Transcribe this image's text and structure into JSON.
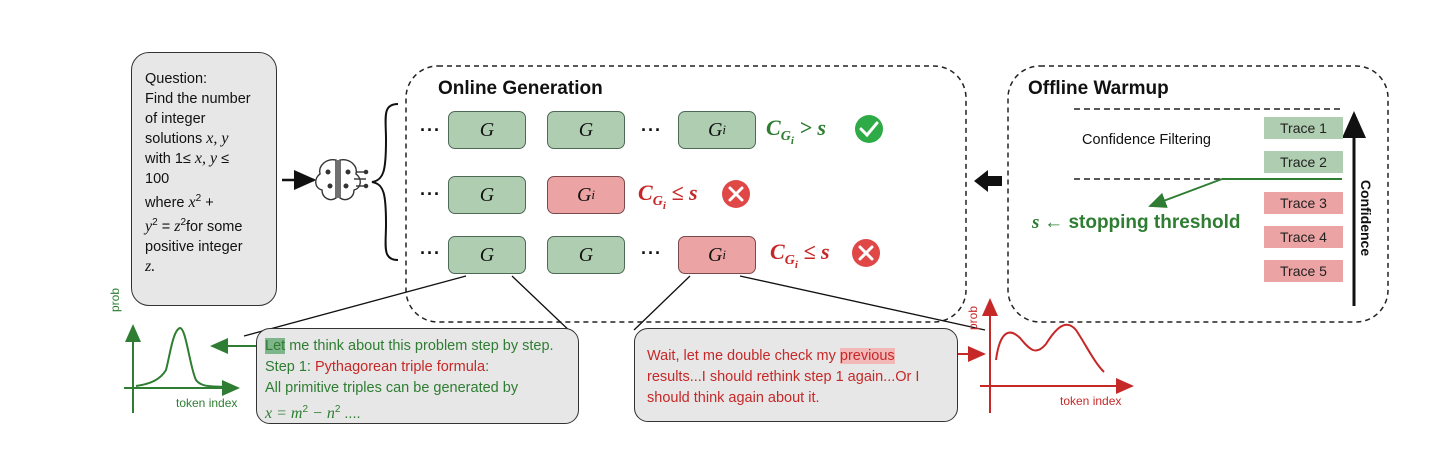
{
  "colors": {
    "green": "#2e7d32",
    "red": "#c62828",
    "box_green": "#afcdb0",
    "box_red": "#eca3a3",
    "panel_gray": "#e7e7e7"
  },
  "question": {
    "lines": [
      "Question:",
      "Find the number",
      "of integer",
      "solutions"
    ],
    "vars_xy": "x, y",
    "with_prefix": "with 1≤",
    "with_vars": "x, y",
    "le_sign": "≤",
    "hundred": "100",
    "where": "where",
    "x2": "x",
    "plus": "+",
    "y2_eq": "y",
    "eq": "=",
    "z2": "z",
    "for_some": "for some",
    "positive_integer": "positive integer",
    "z_end": "z."
  },
  "online_generation": {
    "title": "Online Generation",
    "g_label": "G",
    "gi_label": "G",
    "gi_sub": "i",
    "ellipsis": "···",
    "row1_condition_prefix": "C",
    "row1_condition_op": "> s",
    "row2_condition_op": "≤ s",
    "row3_condition_op": "≤ s"
  },
  "offline_warmup": {
    "title": "Offline Warmup",
    "confidence_filtering": "Confidence Filtering",
    "axis_label": "Confidence",
    "stopping_threshold_symbol": "s ←",
    "stopping_threshold_text": "stopping threshold",
    "traces": [
      {
        "label": "Trace 1",
        "status": "kept"
      },
      {
        "label": "Trace 2",
        "status": "kept"
      },
      {
        "label": "Trace 3",
        "status": "filtered"
      },
      {
        "label": "Trace 4",
        "status": "filtered"
      },
      {
        "label": "Trace 5",
        "status": "filtered"
      }
    ]
  },
  "left_bubble": {
    "highlight": "Let",
    "text1": " me think about this problem step by step. Step 1: ",
    "text2": "Pythagorean triple formula",
    "text3": ":",
    "text4": "All primitive triples can be generated by",
    "formula_x": "x = m",
    "formula_minus": " − n",
    "formula_end": " ...."
  },
  "right_bubble": {
    "text1": "Wait, let me double check my ",
    "highlight": "previous",
    "text2": "results...I should rethink step 1 again...Or I should think again about it."
  },
  "left_plot": {
    "ylabel": "prob",
    "xlabel": "token index"
  },
  "right_plot": {
    "ylabel": "prob",
    "xlabel": "token index"
  }
}
